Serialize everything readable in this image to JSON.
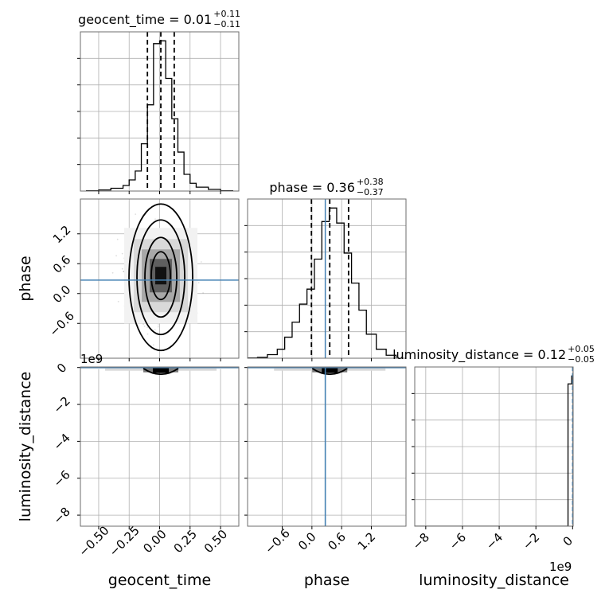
{
  "chart_data": {
    "type": "corner",
    "parameters": [
      "geocent_time",
      "phase",
      "luminosity_distance"
    ],
    "axis_labels": {
      "x": [
        "geocent_time",
        "phase",
        "luminosity_distance"
      ],
      "y": [
        "phase",
        "luminosity_distance"
      ]
    },
    "titles": [
      {
        "param": "geocent_time",
        "text": "geocent_time = 0.01",
        "sup": "+0.11",
        "sub": "−0.11",
        "median": 0.01,
        "plus": 0.11,
        "minus": 0.11
      },
      {
        "param": "phase",
        "text": "phase = 0.36",
        "sup": "+0.38",
        "sub": "−0.37",
        "median": 0.36,
        "plus": 0.38,
        "minus": 0.37
      },
      {
        "param": "luminosity_distance",
        "text": "luminosity_distance = 0.12",
        "sup": "+0.05",
        "sub": "−0.05",
        "median": 0.12,
        "plus": 0.05,
        "minus": 0.05
      }
    ],
    "ranges": {
      "geocent_time": [
        -0.65,
        0.65
      ],
      "phase": [
        -1.3,
        1.9
      ],
      "luminosity_distance": [
        -8600000000,
        30000000
      ]
    },
    "ticks": {
      "geocent_time": {
        "values": [
          -0.5,
          -0.25,
          0.0,
          0.25,
          0.5
        ],
        "labels": [
          "−0.50",
          "−0.25",
          "0.00",
          "0.25",
          "0.50"
        ]
      },
      "phase": {
        "values": [
          -0.6,
          0.0,
          0.6,
          1.2
        ],
        "labels": [
          "−0.6",
          "0.0",
          "0.6",
          "1.2"
        ]
      },
      "luminosity_distance": {
        "values": [
          -8,
          -6,
          -4,
          -2,
          0
        ],
        "labels": [
          "−8",
          "−6",
          "−4",
          "−2",
          "0"
        ]
      }
    },
    "offset_text": "1e9",
    "truths": {
      "phase": 0.27,
      "luminosity_distance": 0.0
    },
    "quantiles": {
      "geocent_time": [
        -0.1,
        0.01,
        0.12
      ],
      "phase": [
        -0.01,
        0.36,
        0.74
      ]
    },
    "histograms": {
      "geocent_time": {
        "edges": [
          -0.6,
          -0.5,
          -0.4,
          -0.3,
          -0.25,
          -0.2,
          -0.15,
          -0.1,
          -0.05,
          0.0,
          0.05,
          0.1,
          0.15,
          0.2,
          0.25,
          0.3,
          0.4,
          0.5,
          0.6
        ],
        "counts": [
          1,
          4,
          10,
          20,
          40,
          72,
          170,
          310,
          530,
          540,
          405,
          260,
          140,
          60,
          28,
          14,
          6,
          1
        ]
      },
      "phase": {
        "edges": [
          -1.3,
          -1.1,
          -0.9,
          -0.7,
          -0.55,
          -0.4,
          -0.25,
          -0.1,
          0.05,
          0.2,
          0.35,
          0.5,
          0.65,
          0.8,
          0.95,
          1.1,
          1.3,
          1.5,
          1.7
        ],
        "counts": [
          1,
          3,
          12,
          30,
          70,
          120,
          180,
          230,
          330,
          455,
          500,
          450,
          350,
          250,
          160,
          80,
          30,
          10
        ]
      },
      "luminosity_distance": {
        "edges": [
          -8600000000,
          -250000000,
          -50000000,
          30000000
        ],
        "counts": [
          0,
          360,
          380
        ]
      }
    },
    "gaussian_2d": {
      "geocent_time": {
        "mean": 0.01,
        "sd": 0.1
      },
      "phase": {
        "mean": 0.36,
        "sd": 0.33
      }
    },
    "contour_levels": [
      "0.5",
      "1.0",
      "1.5",
      "2.0"
    ],
    "colors": {
      "truth": "#4682b4",
      "hist": "#000000",
      "quantile": "#000000",
      "grid": "#b0b0b0"
    }
  }
}
